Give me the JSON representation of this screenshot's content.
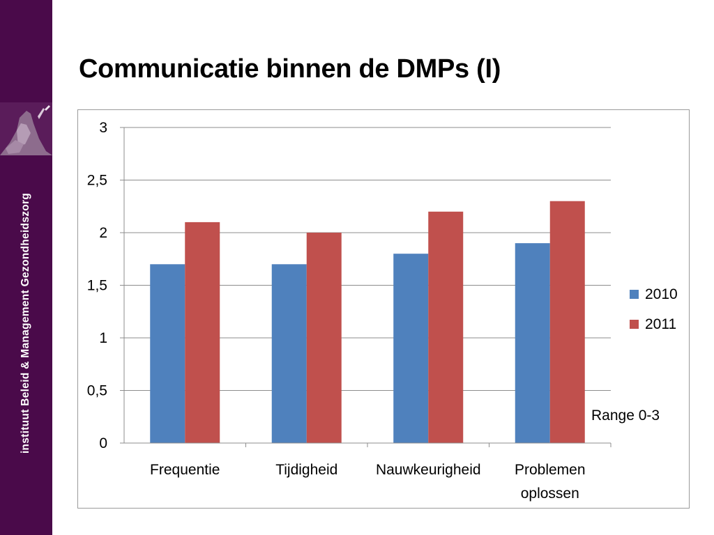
{
  "slide": {
    "title": "Communicatie binnen de DMPs (I)",
    "institute": "instituut Beleid & Management Gezondheidszorg",
    "range_note": "Range 0-3"
  },
  "colors": {
    "sidebar": "#4a0a4a",
    "series_2010": "#4f81bd",
    "series_2011": "#c0504d",
    "gridline": "#8c8c8c"
  },
  "chart_data": {
    "type": "bar",
    "categories": [
      "Frequentie",
      "Tijdigheid",
      "Nauwkeurigheid",
      "Problemen oplossen"
    ],
    "series": [
      {
        "name": "2010",
        "values": [
          1.7,
          1.7,
          1.8,
          1.9
        ]
      },
      {
        "name": "2011",
        "values": [
          2.1,
          2.0,
          2.2,
          2.3
        ]
      }
    ],
    "ylim": [
      0,
      3
    ],
    "yticks": [
      "0",
      "0,5",
      "1",
      "1,5",
      "2",
      "2,5",
      "3"
    ],
    "grid": true,
    "legend_position": "right"
  }
}
